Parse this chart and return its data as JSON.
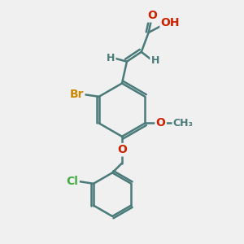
{
  "title": "",
  "bg_color": "#f0f0f0",
  "bond_color": "#4a7a7a",
  "bond_width": 1.8,
  "atom_colors": {
    "C": "#4a7a7a",
    "H": "#4a7a7a",
    "O": "#cc2200",
    "Br": "#cc8800",
    "Cl": "#44aa44",
    "N": "#0000cc"
  },
  "font_size": 9,
  "figsize": [
    3.0,
    3.0
  ],
  "dpi": 100
}
